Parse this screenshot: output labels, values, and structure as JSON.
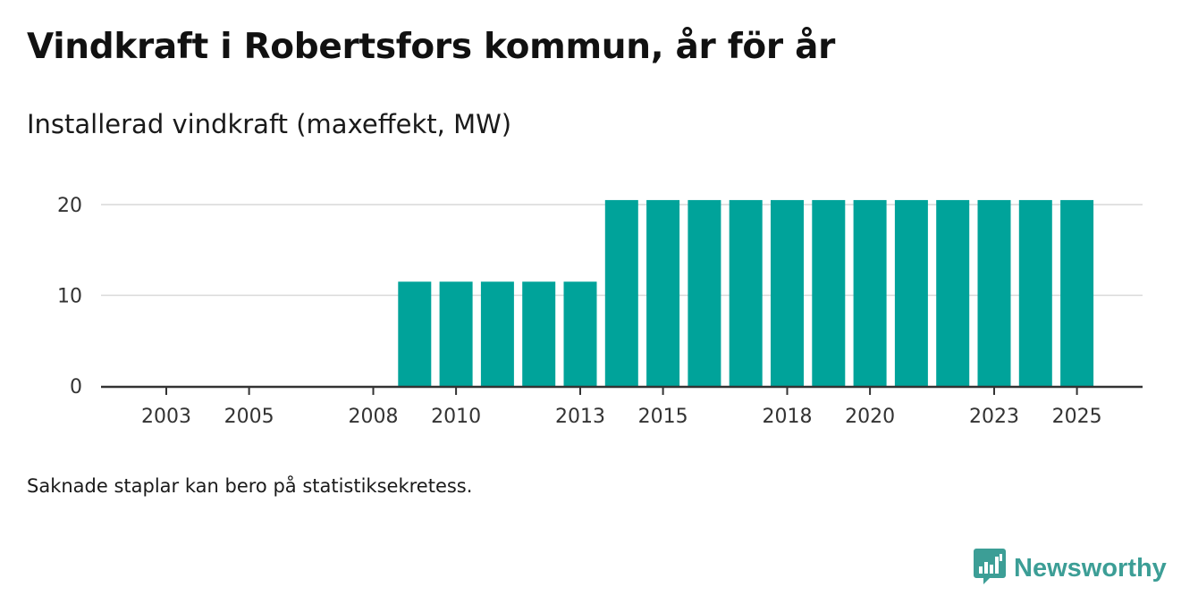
{
  "title": "Vindkraft i Robertsfors kommun, år för år",
  "subtitle": "Installerad vindkraft (maxeffekt, MW)",
  "footnote": "Saknade staplar kan bero på statistiksekretess.",
  "brand": {
    "name": "Newsworthy",
    "icon": "newsworthy-logo-icon",
    "color": "#3c9e96"
  },
  "chart_data": {
    "type": "bar",
    "title": "Vindkraft i Robertsfors kommun, år för år",
    "subtitle": "Installerad vindkraft (maxeffekt, MW)",
    "xlabel": "",
    "ylabel": "MW",
    "bar_color": "#00a39a",
    "grid": true,
    "legend": "none",
    "categories": [
      2002,
      2003,
      2004,
      2005,
      2006,
      2007,
      2008,
      2009,
      2010,
      2011,
      2012,
      2013,
      2014,
      2015,
      2016,
      2017,
      2018,
      2019,
      2020,
      2021,
      2022,
      2023,
      2024,
      2025
    ],
    "values": [
      0,
      0,
      0,
      0,
      0,
      0,
      0,
      11.5,
      11.5,
      11.5,
      11.5,
      11.5,
      20.5,
      20.5,
      20.5,
      20.5,
      20.5,
      20.5,
      20.5,
      20.5,
      20.5,
      20.5,
      20.5,
      20.5
    ],
    "xticks": [
      2003,
      2005,
      2008,
      2010,
      2013,
      2015,
      2018,
      2020,
      2023,
      2025
    ],
    "yticks": [
      0,
      10,
      20
    ],
    "ylim": [
      0,
      20.5
    ]
  }
}
